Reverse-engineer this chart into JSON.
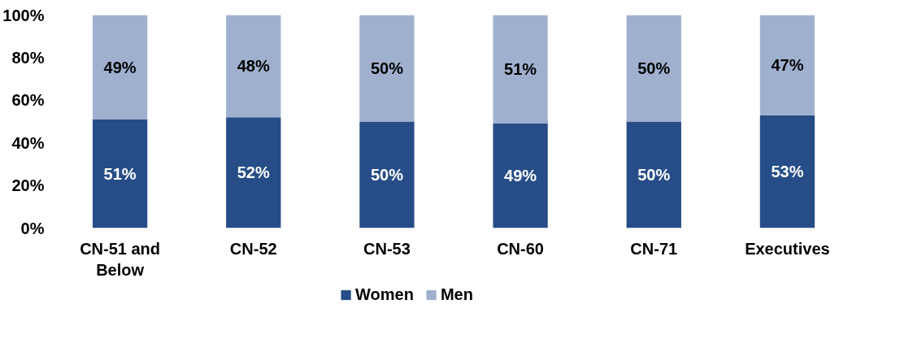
{
  "chart_data": {
    "type": "bar",
    "stacked": true,
    "categories": [
      "CN-51 and Below",
      "CN-52",
      "CN-53",
      "CN-60",
      "CN-71",
      "Executives"
    ],
    "series": [
      {
        "name": "Women",
        "color": "#264d87",
        "values": [
          51,
          52,
          50,
          49,
          50,
          53
        ],
        "value_labels": [
          "51%",
          "52%",
          "50%",
          "49%",
          "50%",
          "53%"
        ]
      },
      {
        "name": "Men",
        "color": "#9fb0cf",
        "values": [
          49,
          48,
          50,
          51,
          50,
          47
        ],
        "value_labels": [
          "49%",
          "48%",
          "50%",
          "51%",
          "50%",
          "47%"
        ]
      }
    ],
    "ylim": [
      0,
      100
    ],
    "yticks": [
      {
        "value": 0,
        "label": "0%"
      },
      {
        "value": 20,
        "label": "20%"
      },
      {
        "value": 40,
        "label": "40%"
      },
      {
        "value": 60,
        "label": "60%"
      },
      {
        "value": 80,
        "label": "80%"
      },
      {
        "value": 100,
        "label": "100%"
      }
    ],
    "grid": false,
    "legend": "bottom"
  }
}
